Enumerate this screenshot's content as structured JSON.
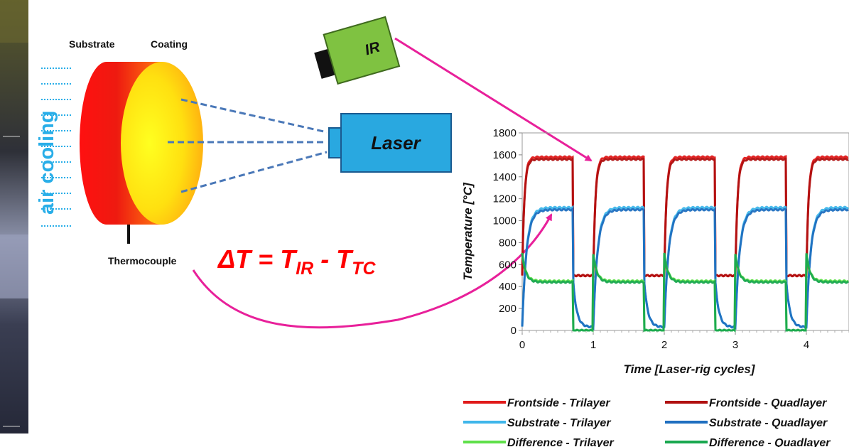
{
  "diagram": {
    "labels": {
      "substrate": "Substrate",
      "coating": "Coating",
      "air_cooling": "air cooling",
      "thermocouple": "Thermocouple",
      "ir": "IR",
      "laser": "Laser"
    },
    "equation": {
      "lhs": "ΔT = T",
      "sub_ir": "IR",
      "minus": " - T",
      "sub_tc": "TC"
    }
  },
  "colors": {
    "arrow": "#e8209a",
    "equation": "#ff0000",
    "laser_box": "#29a8e0",
    "ir_box": "#7fc241",
    "air_cooling": "#29aee8",
    "beam": "#4a78b8"
  },
  "chart_data": {
    "type": "line",
    "xlabel": "Time [Laser-rig cycles]",
    "ylabel": "Temperature [°C]",
    "xlim": [
      0,
      4.6
    ],
    "ylim": [
      0,
      1800
    ],
    "xticks": [
      "0",
      "1",
      "2",
      "3",
      "4"
    ],
    "yticks": [
      "0",
      "200",
      "400",
      "600",
      "800",
      "1000",
      "1200",
      "1400",
      "1600",
      "1800"
    ],
    "legend_position": "bottom",
    "series": [
      {
        "name": "Frontside - Trilayer",
        "color": "#e01a1a",
        "peak": 1580,
        "baseline": 500
      },
      {
        "name": "Frontside - Quadlayer",
        "color": "#b01010",
        "peak": 1560,
        "baseline": 500
      },
      {
        "name": "Substrate - Trilayer",
        "color": "#3fb6ea",
        "peak": 1120,
        "baseline": 30
      },
      {
        "name": "Substrate - Quadlayer",
        "color": "#1f6fc0",
        "peak": 1100,
        "baseline": 30
      },
      {
        "name": "Difference - Trilayer",
        "color": "#5fe04a",
        "peak": 450,
        "baseline": 0
      },
      {
        "name": "Difference - Quadlayer",
        "color": "#1aa850",
        "peak": 440,
        "baseline": 0
      }
    ]
  }
}
